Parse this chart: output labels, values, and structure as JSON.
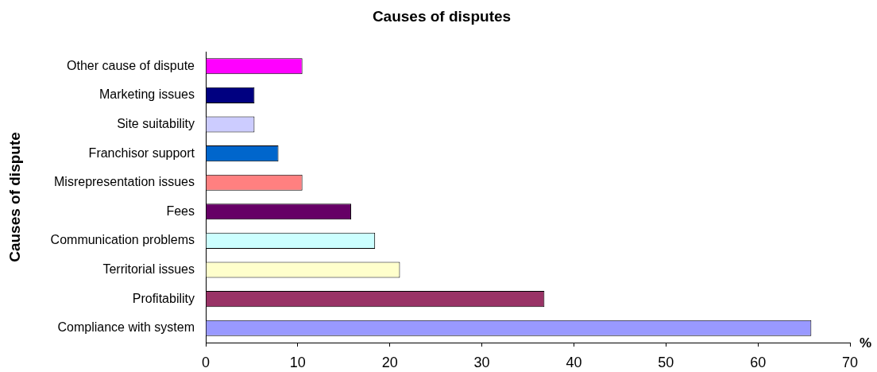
{
  "chart_data": {
    "type": "bar",
    "orientation": "horizontal",
    "title": "Causes of disputes",
    "xlabel": "%",
    "ylabel": "Causes of dispute",
    "categories": [
      "Other cause of dispute",
      "Marketing issues",
      "Site suitability",
      "Franchisor support",
      "Misrepresentation issues",
      "Fees",
      "Communication problems",
      "Territorial issues",
      "Profitability",
      "Compliance with system"
    ],
    "values": [
      10.5,
      5.3,
      5.3,
      7.9,
      10.5,
      15.8,
      18.4,
      21.1,
      36.8,
      65.8
    ],
    "colors": [
      "#ff00ff",
      "#000080",
      "#ccccff",
      "#0066cc",
      "#ff8080",
      "#660066",
      "#ccffff",
      "#ffffcc",
      "#993366",
      "#9999ff"
    ],
    "xlim": [
      0,
      70
    ],
    "xticks": [
      0,
      10,
      20,
      30,
      40,
      50,
      60,
      70
    ],
    "grid": false,
    "legend": false
  }
}
